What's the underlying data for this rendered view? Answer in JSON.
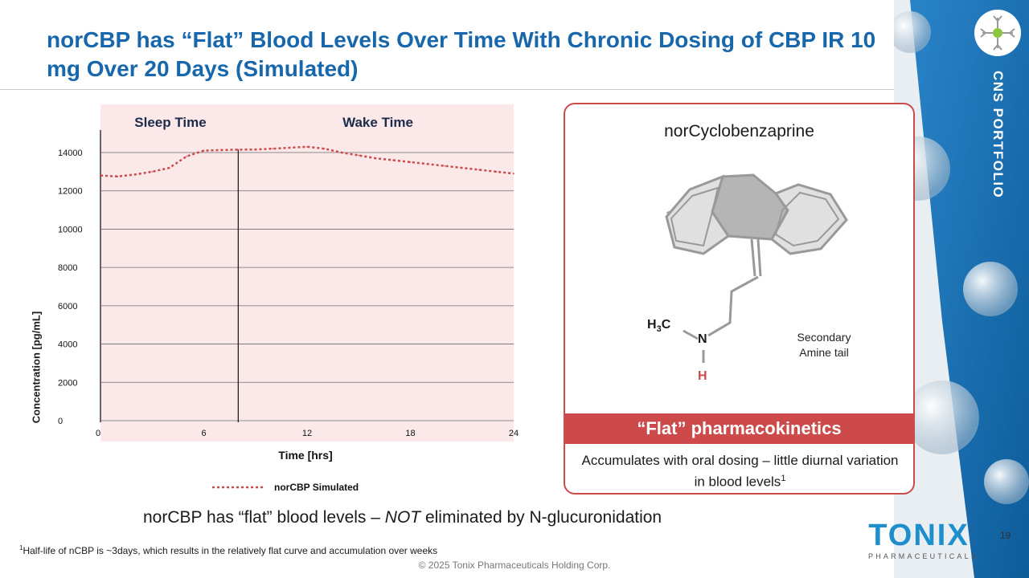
{
  "title": "norCBP has “Flat” Blood Levels Over Time With Chronic Dosing of CBP IR 10 mg Over 20 Days (Simulated)",
  "side": {
    "portfolio_label": "CNS PORTFOLIO",
    "accent": "#1b75bb"
  },
  "card": {
    "title": "norCyclobenzaprine",
    "atom_h3c": "H3C",
    "atom_n": "N",
    "atom_h": "H",
    "note_line1": "Secondary",
    "note_line2": "Amine tail",
    "band": "“Flat” pharmacokinetics",
    "desc": "Accumulates with oral dosing – little diurnal variation in blood levels",
    "desc_sup": "1",
    "accent": "#cc4a4a"
  },
  "chart_data": {
    "type": "line",
    "region_labels": [
      "Sleep Time",
      "Wake Time"
    ],
    "xlabel": "Time [hrs]",
    "ylabel": "Concentration [pg/mL]",
    "xticks": [
      "0",
      "6",
      "12",
      "18",
      "24"
    ],
    "yticks": [
      "0",
      "2000",
      "4000",
      "6000",
      "8000",
      "10000",
      "12000",
      "14000"
    ],
    "xlim": [
      0,
      24
    ],
    "ylim": [
      0,
      14000
    ],
    "boundary_x": 8,
    "grid": true,
    "legend": "bottom",
    "series": [
      {
        "name": "norCBP Simulated",
        "color": "#cc4a4a",
        "x": [
          0,
          1,
          2,
          3,
          4,
          5,
          6,
          7,
          8,
          9,
          10,
          11,
          12,
          13,
          14,
          15,
          16,
          17,
          18,
          19,
          20,
          21,
          22,
          23,
          24
        ],
        "y": [
          12800,
          12750,
          12850,
          13000,
          13200,
          13800,
          14100,
          14130,
          14150,
          14160,
          14200,
          14250,
          14300,
          14200,
          14000,
          13850,
          13700,
          13600,
          13500,
          13400,
          13300,
          13200,
          13100,
          13000,
          12900
        ]
      }
    ]
  },
  "bottom_line": {
    "before": "norCBP has “flat” blood levels – ",
    "emph": "NOT",
    "after": " eliminated by N-glucuronidation"
  },
  "footnote": {
    "sup": "1",
    "text": "Half-life of nCBP is  ~3days, which results in the relatively flat curve and accumulation over weeks"
  },
  "copyright": "© 2025 Tonix Pharmaceuticals Holding Corp.",
  "page_number": "19",
  "logo": {
    "word": "TONIX",
    "sub": "PHARMACEUTICALS"
  }
}
